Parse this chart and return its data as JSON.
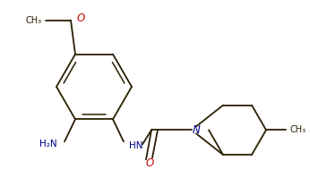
{
  "bg": "#ffffff",
  "bc": "#2a1f00",
  "blue": "#00008b",
  "red": "#cc0000",
  "figsize": [
    3.46,
    1.89
  ],
  "dpi": 100,
  "xlim": [
    0,
    346
  ],
  "ylim": [
    0,
    189
  ]
}
